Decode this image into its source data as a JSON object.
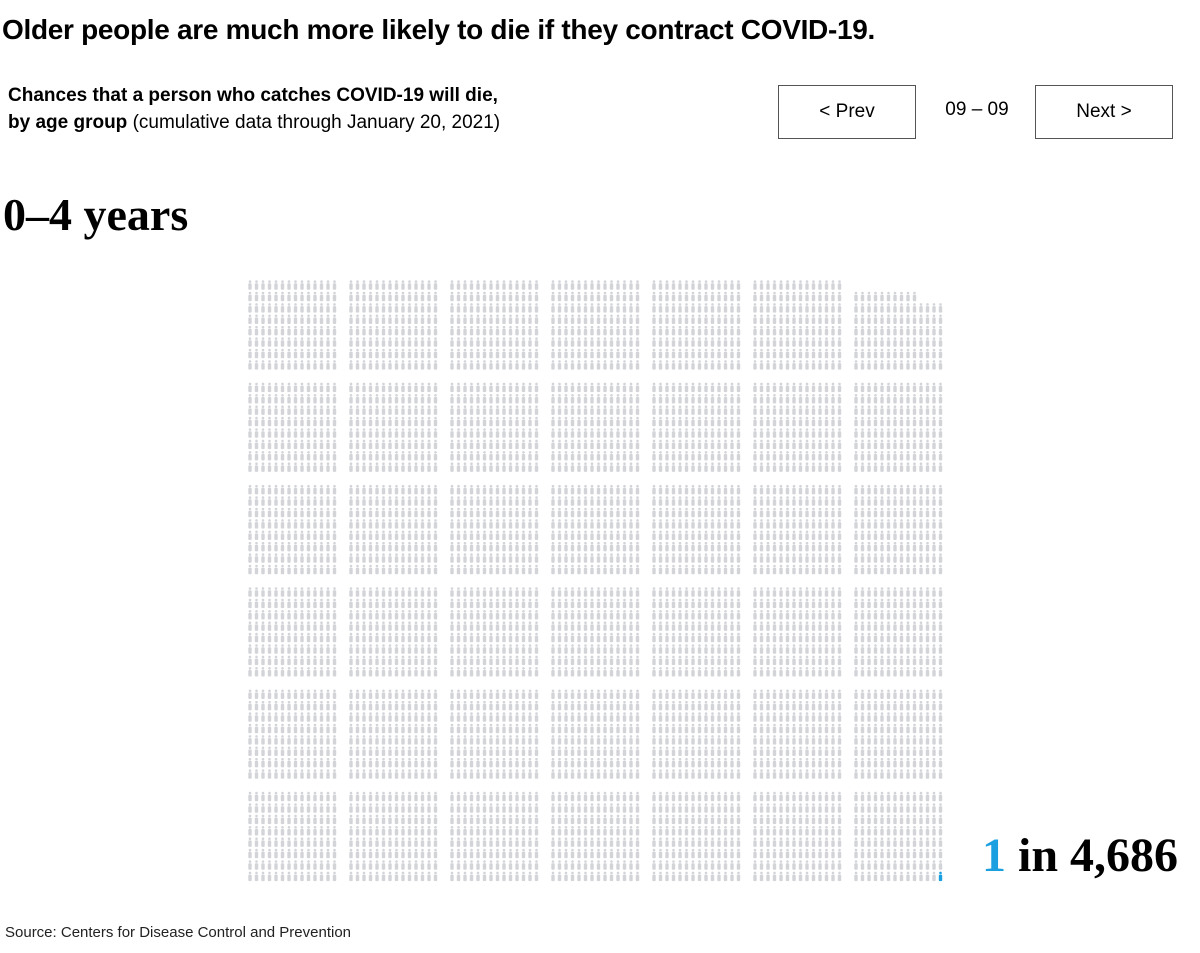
{
  "header": {
    "title": "Older people are much more likely to die if they contract COVID-19.",
    "subtitle_bold_1": "Chances that a person who catches COVID-19 will die,",
    "subtitle_bold_2": "by age group",
    "subtitle_rest": "(cumulative data through January 20, 2021)"
  },
  "nav": {
    "prev_label": "< Prev",
    "next_label": "Next >",
    "page": "09 – 09"
  },
  "panel": {
    "age_group": "0–4 years",
    "deaths": "1",
    "in_label": "in",
    "total": "4,686",
    "total_value": 4686,
    "death_count": 1
  },
  "colors": {
    "person": "#d2d4d8",
    "death": "#1a9fe0"
  },
  "source": "Source: Centers for Disease Control and Prevention"
}
